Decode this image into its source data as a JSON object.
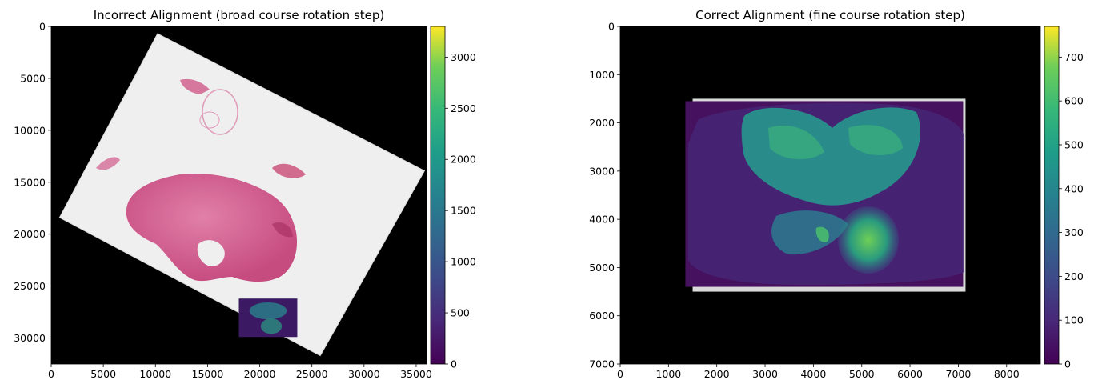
{
  "chart_data": [
    {
      "type": "heatmap",
      "title": "Incorrect Alignment (broad course rotation step)",
      "xlabel": "",
      "ylabel": "",
      "xlim": [
        0,
        36000
      ],
      "ylim": [
        32500,
        0
      ],
      "x_ticks": [
        0,
        5000,
        10000,
        15000,
        20000,
        25000,
        30000,
        35000
      ],
      "y_ticks": [
        0,
        5000,
        10000,
        15000,
        20000,
        25000,
        30000
      ],
      "colorbar": {
        "colormap": "viridis",
        "range": [
          0,
          3300
        ],
        "ticks": [
          0,
          500,
          1000,
          1500,
          2000,
          2500,
          3000
        ]
      },
      "background": "#000000",
      "layers": [
        {
          "kind": "rotated-slide",
          "description_color": "#efefef",
          "corners": [
            [
              10200,
              700
            ],
            [
              35800,
              13900
            ],
            [
              25800,
              31700
            ],
            [
              800,
              18400
            ]
          ]
        },
        {
          "kind": "tissue",
          "color": "#d05a8a",
          "region": "central tissue section"
        },
        {
          "kind": "misaligned-overlay",
          "extent": [
            18000,
            23600,
            26200,
            29900
          ]
        }
      ]
    },
    {
      "type": "heatmap",
      "title": "Correct Alignment (fine course rotation step)",
      "xlabel": "",
      "ylabel": "",
      "xlim": [
        0,
        8700
      ],
      "ylim": [
        7000,
        0
      ],
      "x_ticks": [
        0,
        1000,
        2000,
        3000,
        4000,
        5000,
        6000,
        7000,
        8000
      ],
      "y_ticks": [
        0,
        1000,
        2000,
        3000,
        4000,
        5000,
        6000,
        7000
      ],
      "colorbar": {
        "colormap": "viridis",
        "range": [
          0,
          770
        ],
        "ticks": [
          0,
          100,
          200,
          300,
          400,
          500,
          600,
          700
        ]
      },
      "background": "#000000",
      "layers": [
        {
          "kind": "slide-frame",
          "extent": [
            1500,
            7150,
            1500,
            5500
          ]
        },
        {
          "kind": "aligned-overlay",
          "extent": [
            1350,
            7100,
            1550,
            5400
          ]
        }
      ]
    }
  ]
}
